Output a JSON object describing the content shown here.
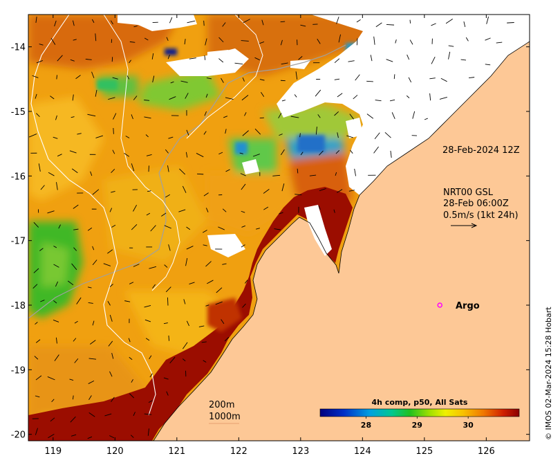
{
  "map": {
    "lon_ticks": [
      119,
      120,
      121,
      122,
      123,
      124,
      125,
      126
    ],
    "lat_ticks": [
      -14,
      -15,
      -16,
      -17,
      -18,
      -19,
      -20
    ],
    "lon_range": [
      118.6,
      126.7
    ],
    "lat_range": [
      -20.1,
      -13.5
    ],
    "colors": {
      "land": "#fdc896",
      "cloud": "#ffffff",
      "hot": "#9b0d00",
      "warm": "#e06a00",
      "mid": "#f0a010",
      "cool": "#40c020",
      "cold": "#2080d0",
      "coldest": "#0a1a8a"
    }
  },
  "annotations": {
    "date_label": "28-Feb-2024 12Z",
    "current_lines": [
      "NRT00 GSL",
      "28-Feb 06:00Z",
      "0.5m/s (1kt 24h)"
    ],
    "argo_label": "Argo",
    "argo_position": {
      "lon": 125.25,
      "lat": -18.0
    },
    "argo_color": "#ff00ff",
    "contour_200": "200m",
    "contour_1000": "1000m"
  },
  "colorbar": {
    "title": "4h comp, p50, All Sats",
    "ticks": [
      28,
      29,
      30
    ],
    "range": [
      27.1,
      31.0
    ]
  },
  "credit": "© IMOS 02-Mar-2024 15:28 Hobart"
}
